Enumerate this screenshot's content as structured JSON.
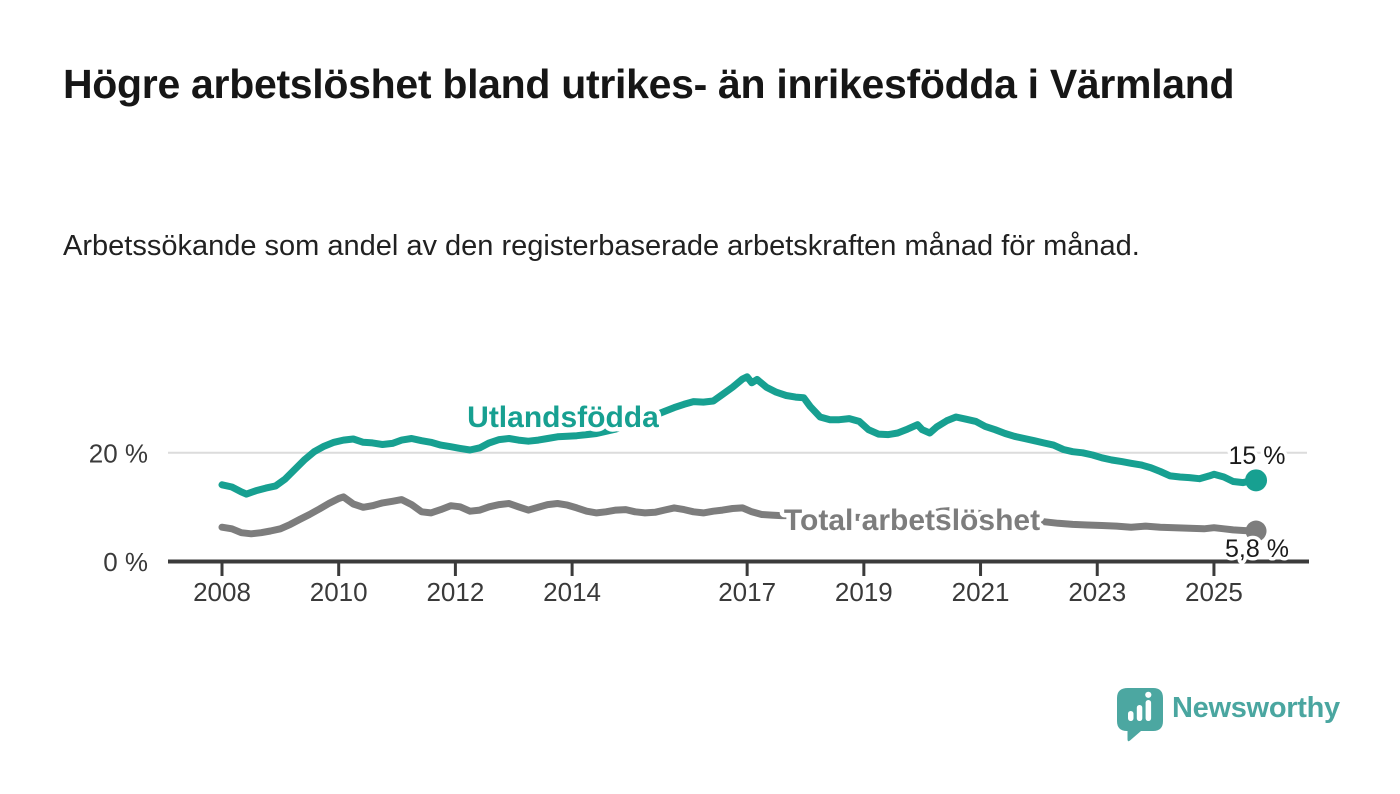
{
  "header": {
    "title": "Högre arbetslöshet bland utrikes- än inrikesfödda i Värmland",
    "subtitle": "Arbetssökande som andel av den registerbaserade arbetskraften månad för månad."
  },
  "footer": {
    "brand": "Newsworthy",
    "logo_icon": "speech-bubble-bar-chart",
    "brand_color": "#4AA6A0",
    "logo_bubble_color": "#4CA7A1"
  },
  "colors": {
    "foreign_born_line": "#17A091",
    "total_line": "#7D7D7D",
    "axis": "#3B3B3B",
    "axis_text": "#3A3A3A",
    "grid": "#DCDCDC",
    "value_label_text": "#1A1A1A",
    "background": "#FFFFFF"
  },
  "chart_data": {
    "type": "line",
    "x_unit": "year (monthly observations)",
    "x_range": [
      2008.0,
      2025.67
    ],
    "ylim": [
      0,
      36
    ],
    "grid": "single horizontal gridline at 20 %",
    "legend_position": "inline labels on lines",
    "x_ticks": [
      "2008",
      "2010",
      "2012",
      "2014",
      "2017",
      "2019",
      "2021",
      "2023",
      "2025"
    ],
    "y_ticks": [
      {
        "value": 20,
        "label": "20 %"
      },
      {
        "value": 0,
        "label": "0 %"
      }
    ],
    "series": [
      {
        "name": "Utlandsfödda",
        "color": "#17A091",
        "end_label": "15 %",
        "end_value": 15.0,
        "points": [
          [
            2008.0,
            14.2
          ],
          [
            2008.17,
            13.8
          ],
          [
            2008.33,
            12.9
          ],
          [
            2008.42,
            12.5
          ],
          [
            2008.58,
            13.1
          ],
          [
            2008.75,
            13.6
          ],
          [
            2008.92,
            14.0
          ],
          [
            2009.08,
            15.2
          ],
          [
            2009.25,
            17.0
          ],
          [
            2009.42,
            18.8
          ],
          [
            2009.58,
            20.2
          ],
          [
            2009.75,
            21.2
          ],
          [
            2009.92,
            21.9
          ],
          [
            2010.08,
            22.3
          ],
          [
            2010.25,
            22.5
          ],
          [
            2010.42,
            21.9
          ],
          [
            2010.58,
            21.8
          ],
          [
            2010.75,
            21.5
          ],
          [
            2010.92,
            21.7
          ],
          [
            2011.08,
            22.3
          ],
          [
            2011.25,
            22.6
          ],
          [
            2011.42,
            22.2
          ],
          [
            2011.58,
            21.9
          ],
          [
            2011.75,
            21.4
          ],
          [
            2011.92,
            21.1
          ],
          [
            2012.08,
            20.8
          ],
          [
            2012.25,
            20.5
          ],
          [
            2012.42,
            20.9
          ],
          [
            2012.58,
            21.8
          ],
          [
            2012.75,
            22.4
          ],
          [
            2012.92,
            22.6
          ],
          [
            2013.08,
            22.3
          ],
          [
            2013.25,
            22.1
          ],
          [
            2013.42,
            22.3
          ],
          [
            2013.58,
            22.6
          ],
          [
            2013.75,
            22.9
          ],
          [
            2013.92,
            23.0
          ],
          [
            2014.08,
            23.1
          ],
          [
            2014.25,
            23.3
          ],
          [
            2014.42,
            23.5
          ],
          [
            2014.58,
            23.9
          ],
          [
            2014.75,
            24.3
          ],
          [
            2014.92,
            24.9
          ],
          [
            2015.08,
            25.4
          ],
          [
            2015.25,
            26.0
          ],
          [
            2015.42,
            26.8
          ],
          [
            2015.58,
            27.5
          ],
          [
            2015.75,
            28.2
          ],
          [
            2015.92,
            28.8
          ],
          [
            2016.08,
            29.3
          ],
          [
            2016.25,
            29.2
          ],
          [
            2016.42,
            29.4
          ],
          [
            2016.58,
            30.6
          ],
          [
            2016.75,
            31.9
          ],
          [
            2016.92,
            33.4
          ],
          [
            2017.0,
            33.8
          ],
          [
            2017.08,
            32.7
          ],
          [
            2017.17,
            33.3
          ],
          [
            2017.33,
            31.9
          ],
          [
            2017.5,
            31.0
          ],
          [
            2017.67,
            30.4
          ],
          [
            2017.83,
            30.1
          ],
          [
            2017.97,
            30.0
          ],
          [
            2018.08,
            28.4
          ],
          [
            2018.25,
            26.5
          ],
          [
            2018.42,
            26.0
          ],
          [
            2018.58,
            26.0
          ],
          [
            2018.75,
            26.2
          ],
          [
            2018.92,
            25.7
          ],
          [
            2019.08,
            24.2
          ],
          [
            2019.25,
            23.4
          ],
          [
            2019.42,
            23.3
          ],
          [
            2019.58,
            23.6
          ],
          [
            2019.75,
            24.3
          ],
          [
            2019.92,
            25.1
          ],
          [
            2020.0,
            24.2
          ],
          [
            2020.13,
            23.6
          ],
          [
            2020.25,
            24.7
          ],
          [
            2020.42,
            25.8
          ],
          [
            2020.58,
            26.5
          ],
          [
            2020.75,
            26.1
          ],
          [
            2020.92,
            25.7
          ],
          [
            2021.08,
            24.8
          ],
          [
            2021.25,
            24.2
          ],
          [
            2021.42,
            23.5
          ],
          [
            2021.58,
            23.0
          ],
          [
            2021.75,
            22.6
          ],
          [
            2021.92,
            22.2
          ],
          [
            2022.08,
            21.8
          ],
          [
            2022.25,
            21.4
          ],
          [
            2022.42,
            20.6
          ],
          [
            2022.58,
            20.2
          ],
          [
            2022.75,
            20.0
          ],
          [
            2022.92,
            19.6
          ],
          [
            2023.08,
            19.1
          ],
          [
            2023.25,
            18.7
          ],
          [
            2023.42,
            18.4
          ],
          [
            2023.58,
            18.1
          ],
          [
            2023.75,
            17.8
          ],
          [
            2023.92,
            17.3
          ],
          [
            2024.08,
            16.6
          ],
          [
            2024.25,
            15.8
          ],
          [
            2024.42,
            15.6
          ],
          [
            2024.58,
            15.5
          ],
          [
            2024.75,
            15.3
          ],
          [
            2024.92,
            15.8
          ],
          [
            2025.0,
            16.1
          ],
          [
            2025.17,
            15.6
          ],
          [
            2025.33,
            14.8
          ],
          [
            2025.5,
            14.6
          ],
          [
            2025.67,
            15.0
          ]
        ]
      },
      {
        "name": "Total arbetslöshet",
        "color": "#7D7D7D",
        "end_label": "5,8 %",
        "end_value": 5.8,
        "points": [
          [
            2008.0,
            6.5
          ],
          [
            2008.17,
            6.2
          ],
          [
            2008.33,
            5.5
          ],
          [
            2008.5,
            5.3
          ],
          [
            2008.67,
            5.5
          ],
          [
            2008.83,
            5.8
          ],
          [
            2009.0,
            6.2
          ],
          [
            2009.17,
            7.0
          ],
          [
            2009.33,
            7.9
          ],
          [
            2009.5,
            8.8
          ],
          [
            2009.67,
            9.8
          ],
          [
            2009.83,
            10.8
          ],
          [
            2010.0,
            11.7
          ],
          [
            2010.08,
            12.0
          ],
          [
            2010.25,
            10.7
          ],
          [
            2010.42,
            10.1
          ],
          [
            2010.58,
            10.4
          ],
          [
            2010.75,
            10.9
          ],
          [
            2010.92,
            11.2
          ],
          [
            2011.08,
            11.5
          ],
          [
            2011.25,
            10.6
          ],
          [
            2011.42,
            9.3
          ],
          [
            2011.58,
            9.1
          ],
          [
            2011.75,
            9.7
          ],
          [
            2011.92,
            10.4
          ],
          [
            2012.08,
            10.2
          ],
          [
            2012.25,
            9.4
          ],
          [
            2012.42,
            9.6
          ],
          [
            2012.58,
            10.2
          ],
          [
            2012.75,
            10.6
          ],
          [
            2012.92,
            10.8
          ],
          [
            2013.08,
            10.2
          ],
          [
            2013.25,
            9.6
          ],
          [
            2013.42,
            10.1
          ],
          [
            2013.58,
            10.6
          ],
          [
            2013.75,
            10.8
          ],
          [
            2013.92,
            10.5
          ],
          [
            2014.08,
            10.0
          ],
          [
            2014.25,
            9.4
          ],
          [
            2014.42,
            9.1
          ],
          [
            2014.58,
            9.3
          ],
          [
            2014.75,
            9.6
          ],
          [
            2014.92,
            9.7
          ],
          [
            2015.08,
            9.3
          ],
          [
            2015.25,
            9.1
          ],
          [
            2015.42,
            9.2
          ],
          [
            2015.58,
            9.6
          ],
          [
            2015.75,
            10.0
          ],
          [
            2015.92,
            9.7
          ],
          [
            2016.08,
            9.3
          ],
          [
            2016.25,
            9.1
          ],
          [
            2016.42,
            9.4
          ],
          [
            2016.58,
            9.6
          ],
          [
            2016.75,
            9.9
          ],
          [
            2016.92,
            10.0
          ],
          [
            2017.08,
            9.3
          ],
          [
            2017.25,
            8.8
          ],
          [
            2017.42,
            8.7
          ],
          [
            2017.58,
            8.6
          ],
          [
            2017.75,
            8.6
          ],
          [
            2017.92,
            8.5
          ],
          [
            2018.08,
            8.4
          ],
          [
            2018.33,
            8.2
          ],
          [
            2018.58,
            8.2
          ],
          [
            2018.83,
            8.3
          ],
          [
            2019.08,
            8.2
          ],
          [
            2019.33,
            8.1
          ],
          [
            2019.58,
            8.3
          ],
          [
            2019.83,
            8.5
          ],
          [
            2020.08,
            8.8
          ],
          [
            2020.33,
            9.4
          ],
          [
            2020.58,
            9.6
          ],
          [
            2020.83,
            9.3
          ],
          [
            2021.08,
            8.8
          ],
          [
            2021.33,
            8.4
          ],
          [
            2021.58,
            8.0
          ],
          [
            2021.83,
            7.7
          ],
          [
            2022.08,
            7.5
          ],
          [
            2022.33,
            7.2
          ],
          [
            2022.58,
            7.0
          ],
          [
            2022.83,
            6.9
          ],
          [
            2023.08,
            6.8
          ],
          [
            2023.33,
            6.7
          ],
          [
            2023.58,
            6.5
          ],
          [
            2023.83,
            6.7
          ],
          [
            2024.08,
            6.5
          ],
          [
            2024.33,
            6.4
          ],
          [
            2024.58,
            6.3
          ],
          [
            2024.83,
            6.2
          ],
          [
            2025.0,
            6.4
          ],
          [
            2025.17,
            6.2
          ],
          [
            2025.33,
            6.0
          ],
          [
            2025.5,
            5.9
          ],
          [
            2025.67,
            5.8
          ]
        ]
      }
    ]
  }
}
